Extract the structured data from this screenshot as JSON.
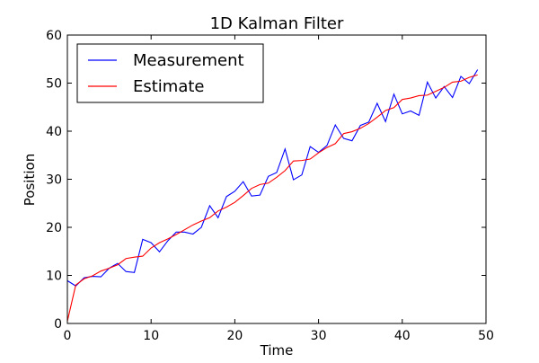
{
  "chart_data": {
    "type": "line",
    "title": "1D Kalman Filter",
    "xlabel": "Time",
    "ylabel": "Position",
    "xlim": [
      0,
      50
    ],
    "ylim": [
      0,
      60
    ],
    "xticks": [
      0,
      10,
      20,
      30,
      40,
      50
    ],
    "yticks": [
      0,
      10,
      20,
      30,
      40,
      50,
      60
    ],
    "grid": false,
    "legend_position": "top-left",
    "x": [
      0,
      1,
      2,
      3,
      4,
      5,
      6,
      7,
      8,
      9,
      10,
      11,
      12,
      13,
      14,
      15,
      16,
      17,
      18,
      19,
      20,
      21,
      22,
      23,
      24,
      25,
      26,
      27,
      28,
      29,
      30,
      31,
      32,
      33,
      34,
      35,
      36,
      37,
      38,
      39,
      40,
      41,
      42,
      43,
      44,
      45,
      46,
      47,
      48,
      49
    ],
    "series": [
      {
        "name": "Measurement",
        "color": "#0000ff",
        "values": [
          8.9,
          7.8,
          9.5,
          9.8,
          9.7,
          11.5,
          12.5,
          10.8,
          10.6,
          17.5,
          16.8,
          14.9,
          17.2,
          19.0,
          19.0,
          18.6,
          20.0,
          24.5,
          22.0,
          26.4,
          27.5,
          29.5,
          26.5,
          26.7,
          30.6,
          31.4,
          36.3,
          29.9,
          30.9,
          36.8,
          35.6,
          37.0,
          41.3,
          38.5,
          38.0,
          41.2,
          41.9,
          45.8,
          42.0,
          47.7,
          43.6,
          44.2,
          43.3,
          50.2,
          46.9,
          49.3,
          47.0,
          51.4,
          49.9,
          52.8
        ]
      },
      {
        "name": "Estimate",
        "color": "#ff0000",
        "values": [
          0.5,
          8.0,
          9.3,
          9.9,
          10.9,
          11.5,
          12.2,
          13.5,
          13.8,
          14.0,
          15.7,
          16.8,
          17.6,
          18.5,
          19.5,
          20.5,
          21.3,
          22.0,
          23.4,
          24.2,
          25.2,
          26.6,
          28.1,
          28.9,
          29.2,
          30.4,
          31.8,
          33.8,
          33.9,
          34.2,
          35.5,
          36.6,
          37.4,
          39.5,
          39.9,
          40.6,
          41.6,
          42.9,
          44.3,
          44.9,
          46.6,
          46.9,
          47.4,
          47.5,
          48.3,
          49.1,
          50.2,
          50.4,
          51.2,
          51.7
        ]
      }
    ]
  }
}
